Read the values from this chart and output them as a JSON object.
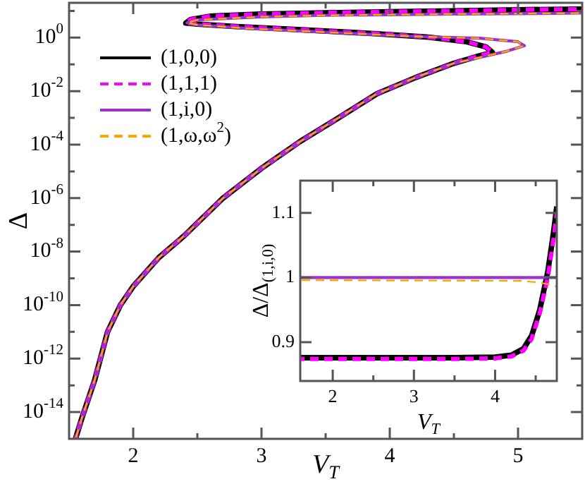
{
  "chart_data": [
    {
      "type": "line",
      "xlabel": "V$_{T}$",
      "ylabel": "Δ",
      "xlim": [
        1.5,
        5.5
      ],
      "ylim": [
        1e-15,
        20
      ],
      "log": "y",
      "legend": "top left",
      "xticks": [
        2,
        {
          "value": 2.5,
          "label": null
        },
        3,
        {
          "value": 3.5,
          "label": null
        },
        4,
        {
          "value": 4.5,
          "label": null
        },
        5
      ],
      "yticks": [
        {
          "value": 1e-14,
          "label": "10$^{-14}$"
        },
        {
          "value": 1e-13,
          "label": null
        },
        {
          "value": 1e-12,
          "label": "10$^{-12}$"
        },
        {
          "value": 1e-11,
          "label": null
        },
        {
          "value": 1e-10,
          "label": "10$^{-10}$"
        },
        {
          "value": 1e-09,
          "label": null
        },
        {
          "value": 1e-08,
          "label": "10$^{-8}$"
        },
        {
          "value": 1e-07,
          "label": null
        },
        {
          "value": 1e-06,
          "label": "10$^{-6}$"
        },
        {
          "value": 1e-05,
          "label": null
        },
        {
          "value": 0.0001,
          "label": "10$^{-4}$"
        },
        {
          "value": 0.001,
          "label": null
        },
        {
          "value": 0.01,
          "label": "10$^{-2}$"
        },
        {
          "value": 0.1,
          "label": null
        },
        {
          "value": 1,
          "label": "10$^{0}$"
        },
        {
          "value": 10,
          "label": null
        }
      ],
      "series": [
        {
          "name": "(1,0,0)",
          "color": "#000000",
          "line_style": "solid",
          "x": [
            1.55,
            1.6,
            1.7,
            1.8,
            1.9,
            2.0,
            2.2,
            2.4,
            2.7,
            3.0,
            3.3,
            3.6,
            3.9,
            4.2,
            4.5,
            4.7,
            4.8,
            4.75,
            4.6,
            4.3,
            3.9,
            3.2,
            2.8,
            2.5,
            2.41,
            2.45,
            2.6,
            3.0,
            3.5,
            4.0,
            4.5,
            5.0,
            5.5
          ],
          "values": [
            1e-15,
            6e-15,
            1.6e-13,
            1e-11,
            1e-10,
            5e-10,
            6e-09,
            4e-08,
            1e-06,
            1.3e-05,
            0.00013,
            0.001,
            0.008,
            0.032,
            0.11,
            0.21,
            0.28,
            0.45,
            0.7,
            1.05,
            1.4,
            2.1,
            2.6,
            3.2,
            3.5,
            4.8,
            6.3,
            7.6,
            8.5,
            9.3,
            10,
            11,
            11.7
          ]
        },
        {
          "name": "(1,1,1)",
          "color": "#ff00ff",
          "line_style": "dashed",
          "x": [
            1.55,
            1.6,
            1.7,
            1.8,
            1.9,
            2.0,
            2.2,
            2.4,
            2.7,
            3.0,
            3.3,
            3.6,
            3.9,
            4.2,
            4.5,
            4.7,
            4.8,
            4.75,
            4.6,
            4.3,
            3.9,
            3.2,
            2.8,
            2.5,
            2.41,
            2.45,
            2.6,
            3.0,
            3.5,
            4.0,
            4.5,
            5.0,
            5.5
          ],
          "values": [
            1e-15,
            6e-15,
            1.6e-13,
            1e-11,
            1e-10,
            5e-10,
            6e-09,
            4e-08,
            1e-06,
            1.3e-05,
            0.00013,
            0.001,
            0.008,
            0.032,
            0.11,
            0.21,
            0.28,
            0.45,
            0.7,
            1.05,
            1.4,
            2.1,
            2.6,
            3.2,
            3.5,
            4.8,
            6.3,
            7.6,
            8.5,
            9.3,
            10,
            11,
            11.7
          ]
        },
        {
          "name": "(1,i,0)",
          "color": "#9933cc",
          "line_style": "solid",
          "x": [
            1.55,
            1.6,
            1.7,
            1.8,
            1.9,
            2.0,
            2.2,
            2.4,
            2.7,
            3.0,
            3.3,
            3.6,
            3.9,
            4.2,
            4.5,
            4.7,
            4.9,
            5.05,
            5.0,
            4.7,
            4.2,
            3.5,
            2.9,
            2.5,
            2.42,
            2.5,
            3.0,
            3.5,
            4.0,
            4.5,
            5.0,
            5.5
          ],
          "values": [
            1e-15,
            6e-15,
            1.6e-13,
            1e-11,
            1e-10,
            5e-10,
            6e-09,
            4e-08,
            1e-06,
            1.3e-05,
            0.00013,
            0.001,
            0.008,
            0.032,
            0.11,
            0.18,
            0.3,
            0.5,
            0.7,
            0.95,
            1.1,
            1.6,
            2.2,
            3.0,
            3.6,
            4.6,
            6.0,
            6.8,
            7.2,
            7.6,
            7.9,
            8.3
          ]
        },
        {
          "name": "(1,ω,ω$^{2}$)",
          "color": "#ffa500",
          "line_style": "dashed",
          "x": [
            1.55,
            1.6,
            1.7,
            1.8,
            1.9,
            2.0,
            2.2,
            2.4,
            2.7,
            3.0,
            3.3,
            3.6,
            3.9,
            4.2,
            4.5,
            4.7,
            4.9,
            5.05,
            5.0,
            4.7,
            4.2,
            3.5,
            2.9,
            2.5,
            2.42,
            2.5,
            3.0,
            3.5,
            4.0,
            4.5,
            5.0,
            5.5
          ],
          "values": [
            1e-15,
            6e-15,
            1.6e-13,
            1e-11,
            1e-10,
            5e-10,
            6e-09,
            4e-08,
            1e-06,
            1.3e-05,
            0.00013,
            0.001,
            0.008,
            0.032,
            0.11,
            0.18,
            0.3,
            0.5,
            0.7,
            0.95,
            1.1,
            1.6,
            2.2,
            3.0,
            3.6,
            4.6,
            6.0,
            6.8,
            7.2,
            7.6,
            7.9,
            8.3
          ]
        }
      ]
    },
    {
      "type": "line",
      "xlabel": "V$_{T}$",
      "ylabel": "Δ/Δ$_{(1,i,0)}$",
      "xlim": [
        1.6,
        4.76
      ],
      "ylim": [
        0.84,
        1.15
      ],
      "xticks": [
        2,
        {
          "value": 2.5,
          "label": null
        },
        3,
        {
          "value": 3.5,
          "label": null
        },
        4,
        {
          "value": 4.5,
          "label": null
        }
      ],
      "yticks": [
        0.9,
        1,
        1.1
      ],
      "series": [
        {
          "color": "#000000",
          "line_style": "solid",
          "x": [
            1.6,
            2.5,
            3.5,
            4.0,
            4.2,
            4.35,
            4.45,
            4.55,
            4.65,
            4.72,
            4.76
          ],
          "values": [
            0.876,
            0.876,
            0.876,
            0.877,
            0.88,
            0.89,
            0.91,
            0.95,
            1.01,
            1.07,
            1.11
          ]
        },
        {
          "color": "#ff00ff",
          "line_style": "dashed",
          "x": [
            1.6,
            2.5,
            3.5,
            4.0,
            4.2,
            4.35,
            4.45,
            4.55,
            4.65,
            4.72,
            4.76
          ],
          "values": [
            0.874,
            0.874,
            0.874,
            0.875,
            0.878,
            0.887,
            0.905,
            0.945,
            1.0,
            1.06,
            1.1
          ]
        },
        {
          "color": "#9933cc",
          "line_style": "solid",
          "x": [
            1.6,
            4.76
          ],
          "values": [
            1,
            1
          ]
        },
        {
          "color": "#ffa500",
          "line_style": "dashed",
          "x": [
            1.6,
            4.3,
            4.5,
            4.65,
            4.76
          ],
          "values": [
            0.996,
            0.995,
            0.993,
            0.99,
            0.986
          ]
        }
      ]
    }
  ]
}
